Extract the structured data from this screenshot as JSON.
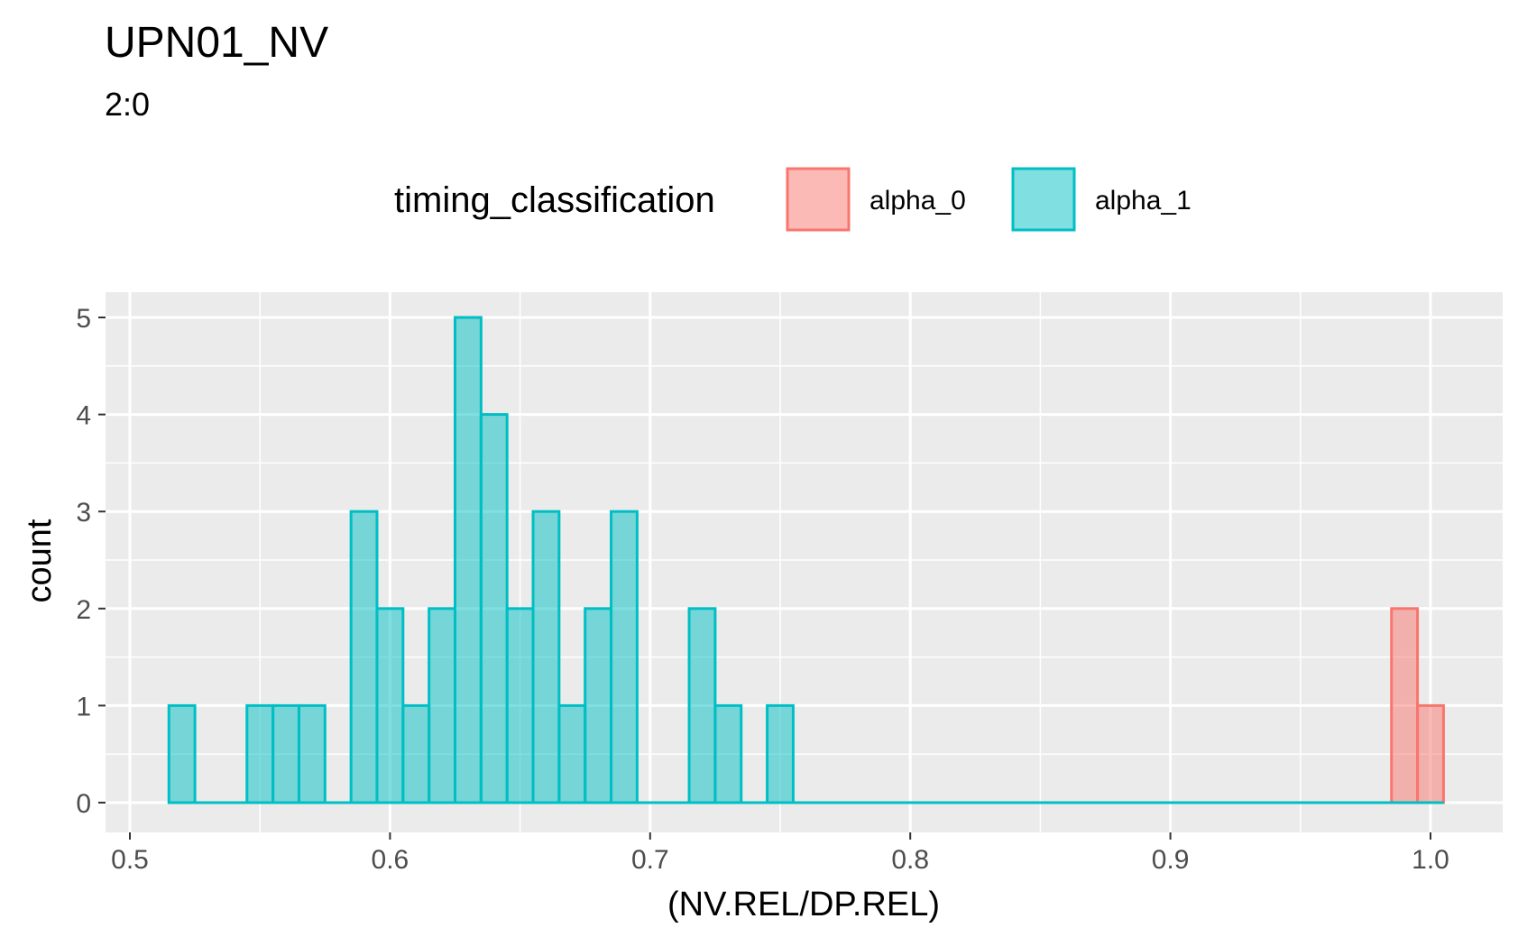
{
  "chart_data": {
    "type": "histogram",
    "title": "UPN01_NV",
    "subtitle": "2:0",
    "xlabel": "(NV.REL/DP.REL)",
    "ylabel": "count",
    "xlim": [
      0.5,
      1.0
    ],
    "ylim": [
      0,
      5
    ],
    "x_ticks": [
      0.5,
      0.6,
      0.7,
      0.8,
      0.9,
      1.0
    ],
    "x_tick_labels": [
      "0.5",
      "0.6",
      "0.7",
      "0.8",
      "0.9",
      "1.0"
    ],
    "y_ticks": [
      0,
      1,
      2,
      3,
      4,
      5
    ],
    "y_tick_labels": [
      "0",
      "1",
      "2",
      "3",
      "4",
      "5"
    ],
    "binwidth": 0.01,
    "grid": true,
    "legend": {
      "title": "timing_classification",
      "position": "top"
    },
    "series": [
      {
        "name": "alpha_0",
        "fill": "#F8766D",
        "bins": [
          {
            "x": 0.99,
            "count": 2
          },
          {
            "x": 1.0,
            "count": 1
          }
        ],
        "baseline_range": [
          0.52,
          1.0
        ]
      },
      {
        "name": "alpha_1",
        "fill": "#00BFC4",
        "bins": [
          {
            "x": 0.52,
            "count": 1
          },
          {
            "x": 0.55,
            "count": 1
          },
          {
            "x": 0.56,
            "count": 1
          },
          {
            "x": 0.57,
            "count": 1
          },
          {
            "x": 0.59,
            "count": 3
          },
          {
            "x": 0.6,
            "count": 2
          },
          {
            "x": 0.61,
            "count": 1
          },
          {
            "x": 0.62,
            "count": 2
          },
          {
            "x": 0.63,
            "count": 5
          },
          {
            "x": 0.64,
            "count": 4
          },
          {
            "x": 0.65,
            "count": 2
          },
          {
            "x": 0.66,
            "count": 3
          },
          {
            "x": 0.67,
            "count": 1
          },
          {
            "x": 0.68,
            "count": 2
          },
          {
            "x": 0.69,
            "count": 3
          },
          {
            "x": 0.72,
            "count": 2
          },
          {
            "x": 0.73,
            "count": 1
          },
          {
            "x": 0.75,
            "count": 1
          }
        ],
        "baseline_range": [
          0.52,
          1.0
        ]
      }
    ]
  }
}
